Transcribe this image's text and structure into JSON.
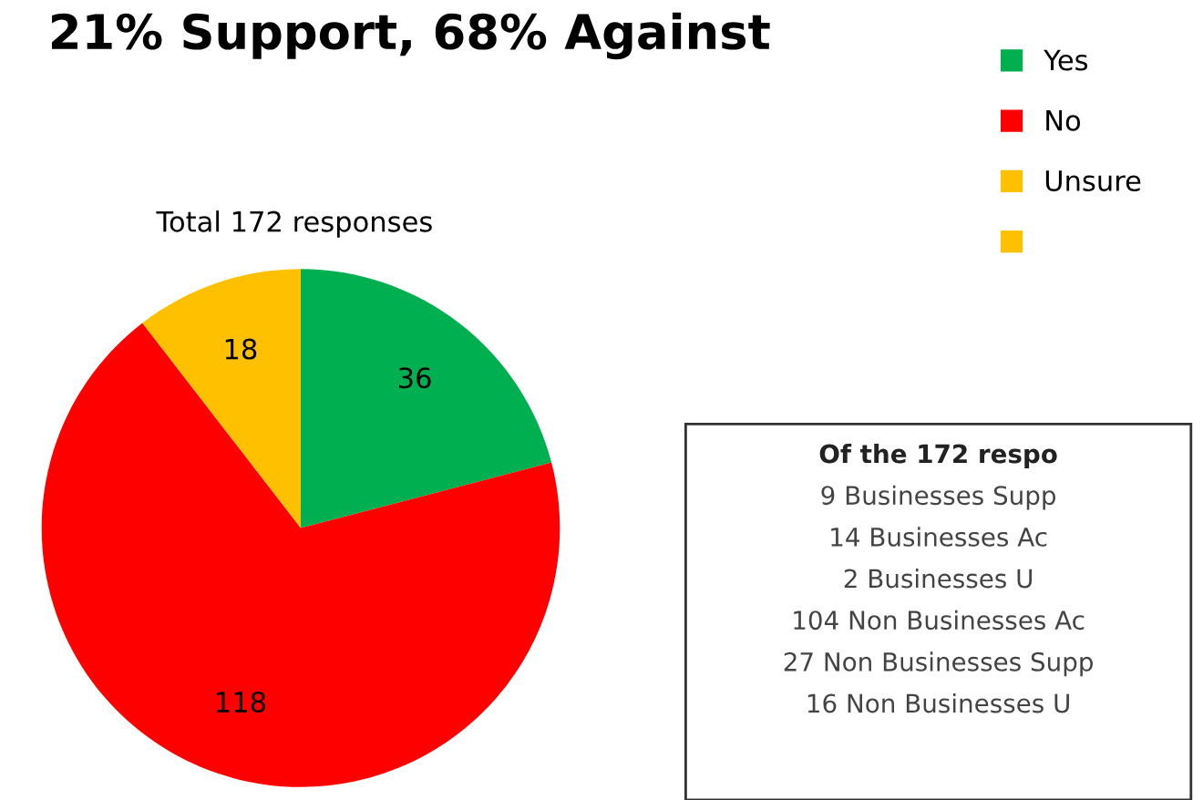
{
  "chart_data": {
    "type": "pie",
    "title": "21% Support, 68% Against",
    "subtitle": "Total 172 responses",
    "categories": [
      "Yes",
      "No",
      "Unsure",
      null
    ],
    "values": [
      36,
      118,
      18,
      0
    ],
    "colors": [
      "#00b050",
      "#ff0000",
      "#ffc000",
      "#ffc000"
    ],
    "data_labels": true,
    "legend": "top right",
    "annotations": [
      "Of the 172 respo",
      "9 Businesses Supp",
      "14 Businesses Ac",
      "2 Businesses U",
      "104 Non Businesses Ac",
      "27 Non Businesses Supp",
      "16 Non Businesses U"
    ]
  }
}
